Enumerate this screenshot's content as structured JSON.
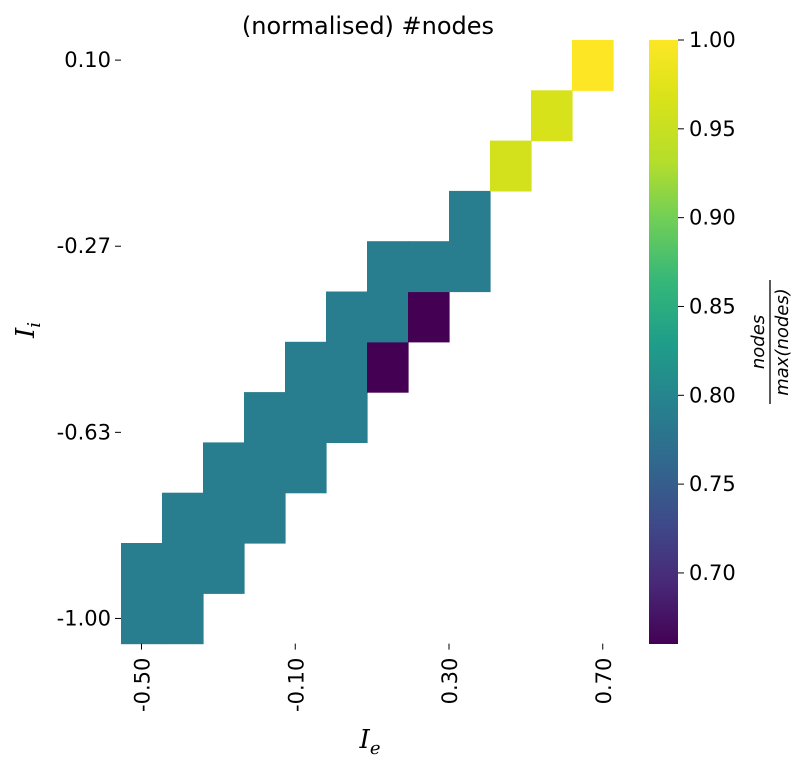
{
  "chart_data": {
    "type": "heatmap",
    "title": "(normalised) #nodes",
    "xlabel": "I_e",
    "ylabel": "I_i",
    "x_ticks": [
      "-0.50",
      "-0.10",
      "0.30",
      "0.70"
    ],
    "y_ticks": [
      "0.10",
      "-0.27",
      "-0.63",
      "-1.00"
    ],
    "x_range": [
      -0.5,
      0.7
    ],
    "y_range": [
      -1.0,
      0.1
    ],
    "n_cols": 12,
    "n_rows": 12,
    "colormap": "viridis",
    "colorbar": {
      "label_numerator": "nodes",
      "label_denominator": "max(nodes)",
      "ticks": [
        "0.70",
        "0.75",
        "0.80",
        "0.85",
        "0.90",
        "0.95",
        "1.00"
      ],
      "vmin": 0.66,
      "vmax": 1.0
    },
    "cells": [
      {
        "col": 0,
        "row": 0,
        "value": 0.79
      },
      {
        "col": 1,
        "row": 0,
        "value": 0.79
      },
      {
        "col": 0,
        "row": 1,
        "value": 0.79
      },
      {
        "col": 1,
        "row": 1,
        "value": 0.79
      },
      {
        "col": 2,
        "row": 1,
        "value": 0.79
      },
      {
        "col": 1,
        "row": 2,
        "value": 0.79
      },
      {
        "col": 2,
        "row": 2,
        "value": 0.79
      },
      {
        "col": 3,
        "row": 2,
        "value": 0.79
      },
      {
        "col": 2,
        "row": 3,
        "value": 0.79
      },
      {
        "col": 3,
        "row": 3,
        "value": 0.79
      },
      {
        "col": 4,
        "row": 3,
        "value": 0.79
      },
      {
        "col": 3,
        "row": 4,
        "value": 0.79
      },
      {
        "col": 4,
        "row": 4,
        "value": 0.79
      },
      {
        "col": 5,
        "row": 4,
        "value": 0.79
      },
      {
        "col": 4,
        "row": 5,
        "value": 0.79
      },
      {
        "col": 5,
        "row": 5,
        "value": 0.79
      },
      {
        "col": 6,
        "row": 5,
        "value": 0.66
      },
      {
        "col": 5,
        "row": 6,
        "value": 0.79
      },
      {
        "col": 6,
        "row": 6,
        "value": 0.79
      },
      {
        "col": 7,
        "row": 6,
        "value": 0.66
      },
      {
        "col": 6,
        "row": 7,
        "value": 0.79
      },
      {
        "col": 7,
        "row": 7,
        "value": 0.79
      },
      {
        "col": 8,
        "row": 7,
        "value": 0.79
      },
      {
        "col": 8,
        "row": 8,
        "value": 0.79
      },
      {
        "col": 9,
        "row": 9,
        "value": 0.96
      },
      {
        "col": 10,
        "row": 10,
        "value": 0.965
      },
      {
        "col": 11,
        "row": 11,
        "value": 1.0
      }
    ]
  }
}
